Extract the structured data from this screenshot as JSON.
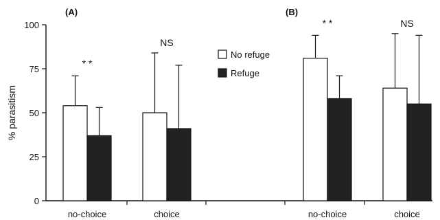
{
  "chart_data": {
    "type": "bar",
    "ylabel": "% parasitism",
    "ylim": [
      0,
      100
    ],
    "yticks": [
      0,
      25,
      50,
      75,
      100
    ],
    "grid": false,
    "legend_position": "center",
    "legend": [
      {
        "name": "No refuge",
        "color": "#ffffff"
      },
      {
        "name": "Refuge",
        "color": "#222222"
      }
    ],
    "panels": [
      {
        "label": "(A)",
        "groups": [
          {
            "category": "no-choice",
            "significance": "* *",
            "no_refuge": {
              "value": 54,
              "error_upper": 71
            },
            "refuge": {
              "value": 37,
              "error_upper": 53
            }
          },
          {
            "category": "choice",
            "significance": "NS",
            "no_refuge": {
              "value": 50,
              "error_upper": 84
            },
            "refuge": {
              "value": 41,
              "error_upper": 77
            }
          }
        ]
      },
      {
        "label": "(B)",
        "groups": [
          {
            "category": "no-choice",
            "significance": "* *",
            "no_refuge": {
              "value": 81,
              "error_upper": 94
            },
            "refuge": {
              "value": 58,
              "error_upper": 71
            }
          },
          {
            "category": "choice",
            "significance": "NS",
            "no_refuge": {
              "value": 64,
              "error_upper": 95
            },
            "refuge": {
              "value": 55,
              "error_upper": 94
            }
          }
        ]
      }
    ]
  }
}
